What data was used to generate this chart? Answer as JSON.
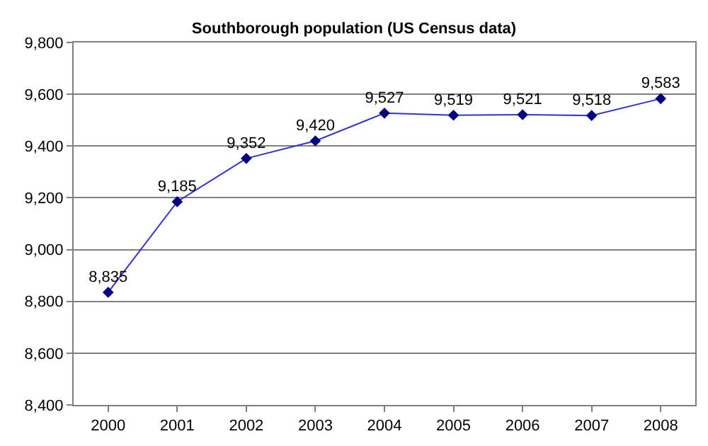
{
  "chart_data": {
    "type": "line",
    "title": "Southborough population (US Census data)",
    "categories": [
      "2000",
      "2001",
      "2002",
      "2003",
      "2004",
      "2005",
      "2006",
      "2007",
      "2008"
    ],
    "series": [
      {
        "color": "#3333cc",
        "values": [
          8835,
          9185,
          9352,
          9420,
          9527,
          9519,
          9521,
          9518,
          9583
        ],
        "value_labels": [
          "8,835",
          "9,185",
          "9,352",
          "9,420",
          "9,527",
          "9,519",
          "9,521",
          "9,518",
          "9,583"
        ]
      }
    ],
    "ylim": [
      8400,
      9800
    ],
    "yticks": [
      {
        "value": 8400,
        "label": "8,400"
      },
      {
        "value": 8600,
        "label": "8,600"
      },
      {
        "value": 8800,
        "label": "8,800"
      },
      {
        "value": 9000,
        "label": "9,000"
      },
      {
        "value": 9200,
        "label": "9,200"
      },
      {
        "value": 9400,
        "label": "9,400"
      },
      {
        "value": 9600,
        "label": "9,600"
      },
      {
        "value": 9800,
        "label": "9,800"
      }
    ],
    "grid": "y",
    "legend": false,
    "marker": "diamond",
    "line_style": "solid"
  }
}
